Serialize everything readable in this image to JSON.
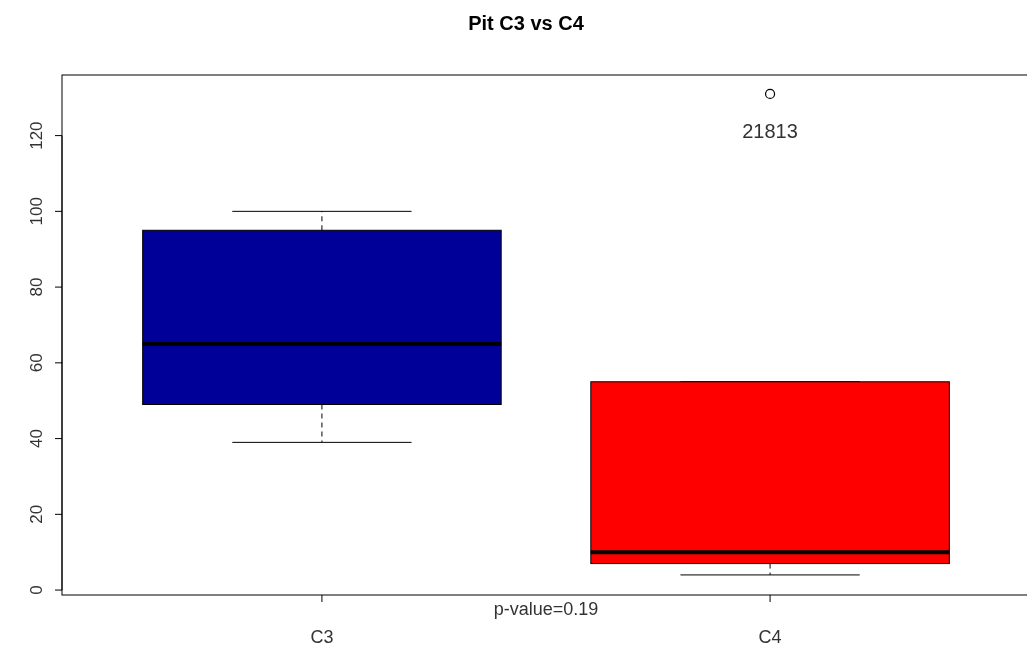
{
  "chart_data": {
    "type": "box",
    "title": "Pit C3 vs C4",
    "categories": [
      "C3",
      "C4"
    ],
    "boxes": [
      {
        "low": 39,
        "q1": 49,
        "median": 65,
        "q3": 95,
        "high": 100
      },
      {
        "low": 4,
        "q1": 7,
        "median": 10,
        "q3": 55,
        "high": 55,
        "outliers": [
          131
        ]
      }
    ],
    "colors": [
      "#000099",
      "#ff0000"
    ],
    "ylim": [
      -1.3,
      136
    ],
    "yticks": [
      0,
      20,
      40,
      60,
      80,
      100,
      120
    ],
    "line_style": "dashed",
    "marker": "circle",
    "grid": false,
    "annotations": [
      "21813",
      "p-value=0.19"
    ]
  }
}
